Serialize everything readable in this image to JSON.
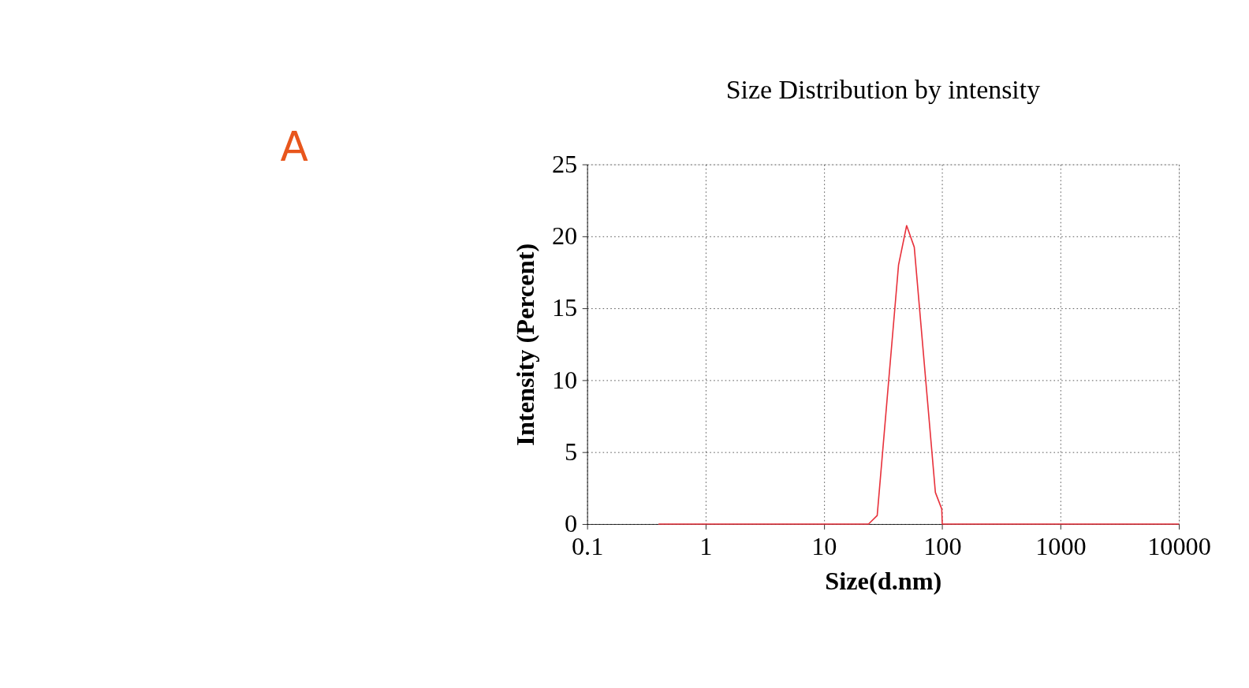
{
  "chart_data": {
    "type": "line",
    "title": "Size Distribution by intensity",
    "xlabel": "Size(d.nm)",
    "ylabel": "Intensity (Percent)",
    "annotations": [
      "A"
    ],
    "x": [
      0.4,
      23.8,
      28.2,
      42.7,
      50,
      58,
      87.5,
      99,
      100,
      10000
    ],
    "series": [
      {
        "color": "#e8323c",
        "values": [
          0,
          0,
          0.6,
          18.0,
          20.75,
          19.25,
          2.2,
          1.05,
          0,
          0
        ]
      }
    ],
    "log": "x",
    "xlim": [
      0.1,
      10000
    ],
    "xticks": [
      0.1,
      1,
      10,
      100,
      1000,
      10000
    ],
    "ylim": [
      0,
      25
    ],
    "yticks": [
      0,
      5,
      10,
      15,
      20,
      25
    ],
    "grid": true,
    "marker": "none",
    "line_style": "solid",
    "legend": false
  }
}
